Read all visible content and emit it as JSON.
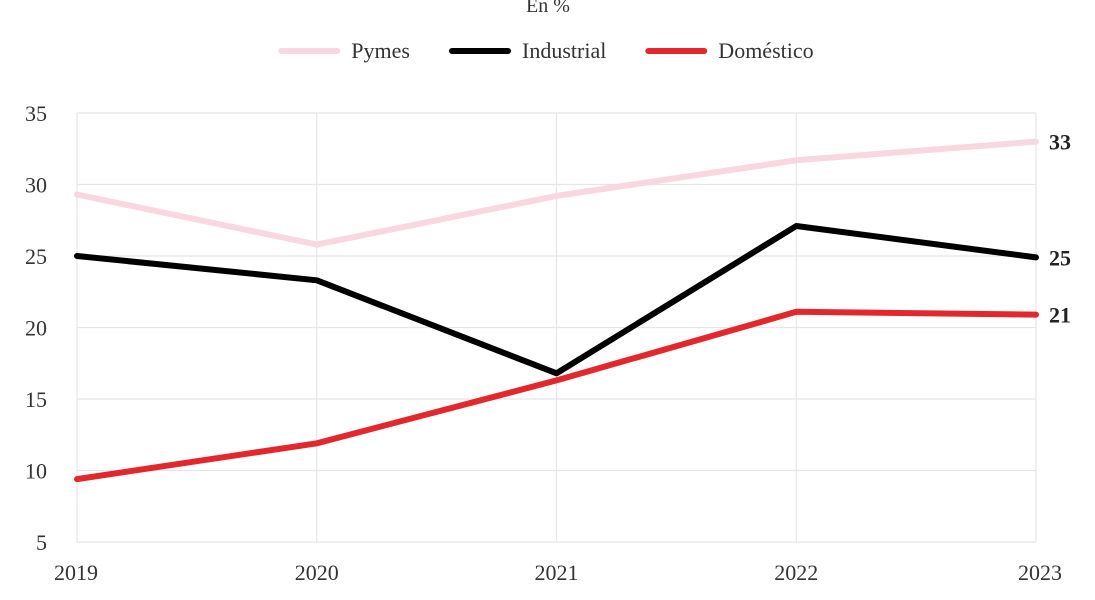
{
  "chart_data": {
    "type": "line",
    "title": "",
    "subtitle": "En %",
    "xlabel": "",
    "ylabel": "",
    "categories": [
      "2019",
      "2020",
      "2021",
      "2022",
      "2023"
    ],
    "ylim": [
      5,
      35
    ],
    "yticks": [
      5,
      10,
      15,
      20,
      25,
      30,
      35
    ],
    "grid": true,
    "legend_position": "top-center",
    "series": [
      {
        "name": "Pymes",
        "color": "#f9d7e0",
        "values": [
          29.3,
          25.8,
          29.2,
          31.7,
          33.0
        ],
        "end_label": "33"
      },
      {
        "name": "Industrial",
        "color": "#000000",
        "values": [
          25.0,
          23.3,
          16.8,
          27.1,
          24.9
        ],
        "end_label": "25"
      },
      {
        "name": "Doméstico",
        "color": "#e3282d",
        "values": [
          9.4,
          11.9,
          16.3,
          21.1,
          20.9
        ],
        "end_label": "21"
      }
    ]
  }
}
